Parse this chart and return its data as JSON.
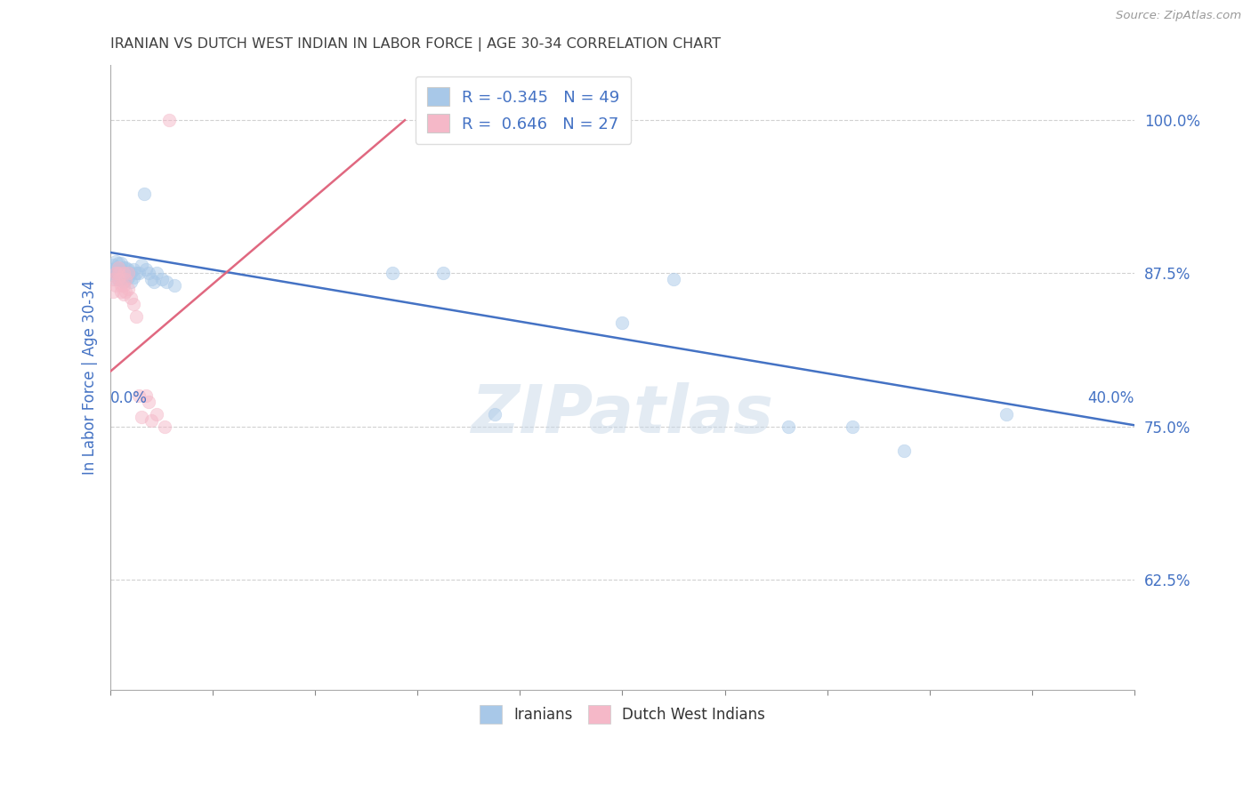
{
  "title": "IRANIAN VS DUTCH WEST INDIAN IN LABOR FORCE | AGE 30-34 CORRELATION CHART",
  "source": "Source: ZipAtlas.com",
  "ylabel": "In Labor Force | Age 30-34",
  "watermark": "ZIPatlas",
  "legend_iranians_R": "-0.345",
  "legend_iranians_N": "49",
  "legend_dutch_R": "0.646",
  "legend_dutch_N": "27",
  "yticks": [
    1.0,
    0.875,
    0.75,
    0.625
  ],
  "ytick_labels": [
    "100.0%",
    "87.5%",
    "75.0%",
    "62.5%"
  ],
  "xtick_labels_left": "0.0%",
  "xtick_labels_right": "40.0%",
  "iranians_x": [
    0.001,
    0.001,
    0.001,
    0.002,
    0.002,
    0.002,
    0.002,
    0.003,
    0.003,
    0.003,
    0.003,
    0.004,
    0.004,
    0.004,
    0.004,
    0.005,
    0.005,
    0.005,
    0.005,
    0.006,
    0.006,
    0.006,
    0.007,
    0.007,
    0.008,
    0.008,
    0.009,
    0.009,
    0.01,
    0.011,
    0.012,
    0.013,
    0.014,
    0.015,
    0.016,
    0.017,
    0.018,
    0.02,
    0.022,
    0.025,
    0.11,
    0.13,
    0.15,
    0.2,
    0.22,
    0.265,
    0.29,
    0.31,
    0.35
  ],
  "iranians_y": [
    0.882,
    0.878,
    0.875,
    0.885,
    0.88,
    0.875,
    0.87,
    0.883,
    0.878,
    0.875,
    0.87,
    0.883,
    0.878,
    0.875,
    0.87,
    0.88,
    0.876,
    0.872,
    0.868,
    0.88,
    0.875,
    0.87,
    0.878,
    0.872,
    0.875,
    0.868,
    0.878,
    0.872,
    0.875,
    0.875,
    0.882,
    0.94,
    0.878,
    0.875,
    0.87,
    0.868,
    0.875,
    0.87,
    0.868,
    0.865,
    0.875,
    0.875,
    0.76,
    0.835,
    0.87,
    0.75,
    0.75,
    0.73,
    0.76
  ],
  "dutch_x": [
    0.001,
    0.001,
    0.002,
    0.002,
    0.003,
    0.003,
    0.003,
    0.004,
    0.004,
    0.005,
    0.005,
    0.005,
    0.006,
    0.006,
    0.007,
    0.007,
    0.008,
    0.009,
    0.01,
    0.011,
    0.012,
    0.014,
    0.015,
    0.016,
    0.018,
    0.021,
    0.023
  ],
  "dutch_y": [
    0.87,
    0.86,
    0.875,
    0.865,
    0.88,
    0.875,
    0.87,
    0.865,
    0.86,
    0.875,
    0.865,
    0.858,
    0.87,
    0.86,
    0.875,
    0.862,
    0.855,
    0.85,
    0.84,
    0.775,
    0.758,
    0.775,
    0.77,
    0.755,
    0.76,
    0.75,
    1.0
  ],
  "blue_line_x": [
    0.0,
    0.4
  ],
  "blue_line_y": [
    0.892,
    0.751
  ],
  "pink_line_x": [
    0.0,
    0.115
  ],
  "pink_line_y": [
    0.795,
    1.0
  ],
  "scatter_size": 110,
  "scatter_alpha": 0.5,
  "blue_color": "#a8c8e8",
  "pink_color": "#f5b8c8",
  "line_blue": "#4472c4",
  "line_pink": "#e06880",
  "background_color": "#ffffff",
  "grid_color": "#cccccc",
  "title_color": "#404040",
  "axis_label_color": "#4472c4",
  "xmin": 0.0,
  "xmax": 0.4,
  "ymin": 0.535,
  "ymax": 1.045
}
